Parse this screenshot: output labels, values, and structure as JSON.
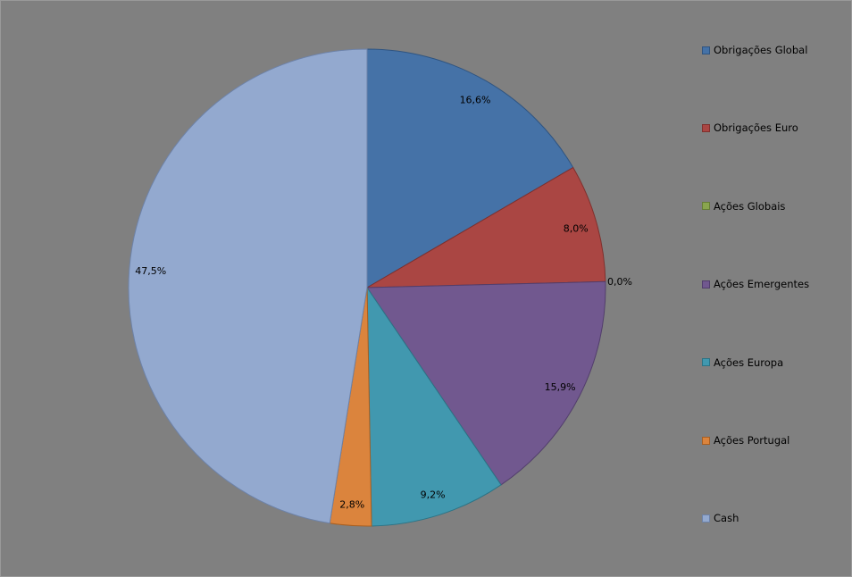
{
  "chart_data": {
    "type": "pie",
    "title": "",
    "legend_position": "right",
    "categories": [
      "Obrigações Global",
      "Obrigações Euro",
      "Ações Globais",
      "Ações Emergentes",
      "Ações Europa",
      "Ações Portugal",
      "Cash"
    ],
    "values": [
      16.6,
      8.0,
      0.0,
      15.9,
      9.2,
      2.8,
      47.5
    ],
    "labels": [
      "16,6%",
      "8,0%",
      "0,0%",
      "15,9%",
      "9,2%",
      "2,8%",
      "47,5%"
    ],
    "colors": [
      "#4572a7",
      "#aa4643",
      "#89a54e",
      "#71588f",
      "#4198af",
      "#db843d",
      "#93a9cf"
    ],
    "borders": [
      "#2f5480",
      "#7f302d",
      "#657c36",
      "#523e6c",
      "#2c7385",
      "#a75f22",
      "#6d82a8"
    ]
  }
}
